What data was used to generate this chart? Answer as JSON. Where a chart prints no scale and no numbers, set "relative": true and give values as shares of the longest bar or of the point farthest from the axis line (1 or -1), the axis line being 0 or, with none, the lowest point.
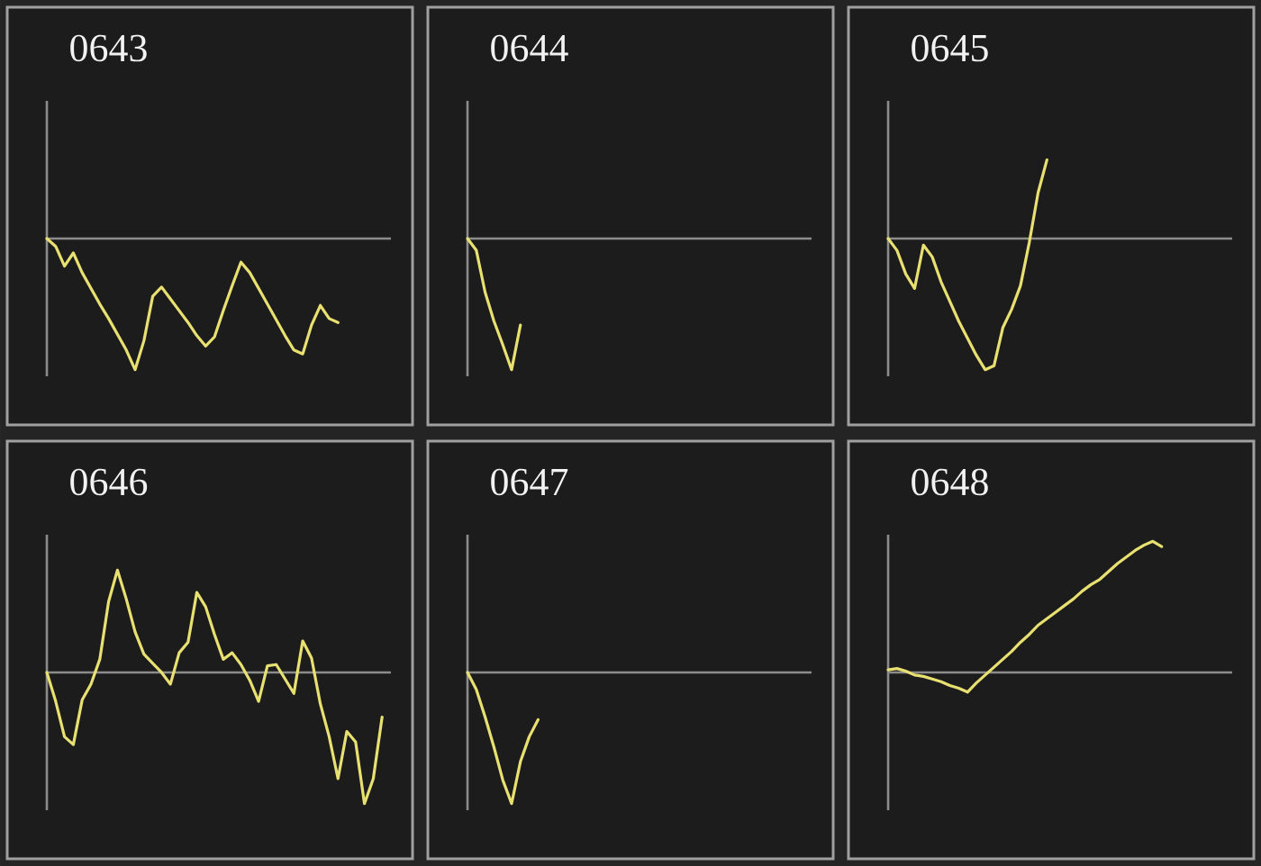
{
  "chart_data": [
    {
      "type": "line",
      "title": "0643",
      "relative": true,
      "color": "#e8e070",
      "categories": [
        null,
        null,
        null,
        null,
        null,
        null,
        null,
        null,
        null,
        null,
        null,
        null,
        null,
        null,
        null,
        null,
        null,
        null,
        null,
        null,
        null,
        null,
        null,
        null,
        null,
        null,
        null,
        null,
        null,
        null,
        null,
        null,
        null,
        null,
        null,
        null,
        null,
        null,
        null,
        null
      ],
      "values": [
        0,
        -0.06,
        -0.21,
        -0.11,
        -0.26,
        -0.38,
        -0.5,
        -0.61,
        -0.73,
        -0.85,
        -1,
        -0.78,
        -0.44,
        -0.37,
        -0.46,
        -0.55,
        -0.64,
        -0.74,
        -0.82,
        -0.75,
        -0.55,
        -0.36,
        -0.18,
        -0.26,
        -0.38,
        -0.5,
        -0.62,
        -0.74,
        -0.85,
        -0.88,
        -0.66,
        -0.51,
        -0.61,
        -0.64,
        null,
        null,
        null,
        null,
        null,
        null
      ]
    },
    {
      "type": "line",
      "title": "0644",
      "relative": true,
      "color": "#e8e070",
      "categories": [
        null,
        null,
        null,
        null,
        null,
        null,
        null,
        null,
        null,
        null,
        null,
        null,
        null,
        null,
        null,
        null,
        null,
        null,
        null,
        null,
        null,
        null,
        null,
        null,
        null,
        null,
        null,
        null,
        null,
        null,
        null,
        null,
        null,
        null,
        null,
        null,
        null,
        null,
        null,
        null
      ],
      "values": [
        0,
        -0.09,
        -0.41,
        -0.63,
        -0.81,
        -1,
        -0.66,
        null,
        null,
        null,
        null,
        null,
        null,
        null,
        null,
        null,
        null,
        null,
        null,
        null,
        null,
        null,
        null,
        null,
        null,
        null,
        null,
        null,
        null,
        null,
        null,
        null,
        null,
        null,
        null,
        null,
        null,
        null,
        null,
        null
      ]
    },
    {
      "type": "line",
      "title": "0645",
      "relative": true,
      "color": "#e8e070",
      "categories": [
        null,
        null,
        null,
        null,
        null,
        null,
        null,
        null,
        null,
        null,
        null,
        null,
        null,
        null,
        null,
        null,
        null,
        null,
        null,
        null,
        null,
        null,
        null,
        null,
        null,
        null,
        null,
        null,
        null,
        null,
        null,
        null,
        null,
        null,
        null,
        null,
        null,
        null,
        null,
        null
      ],
      "values": [
        0,
        -0.09,
        -0.27,
        -0.38,
        -0.05,
        -0.14,
        -0.33,
        -0.48,
        -0.63,
        -0.76,
        -0.89,
        -1,
        -0.97,
        -0.68,
        -0.54,
        -0.36,
        -0.03,
        0.35,
        0.6,
        null,
        null,
        null,
        null,
        null,
        null,
        null,
        null,
        null,
        null,
        null,
        null,
        null,
        null,
        null,
        null,
        null,
        null,
        null,
        null,
        null
      ]
    },
    {
      "type": "line",
      "title": "0646",
      "relative": true,
      "color": "#e8e070",
      "categories": [
        null,
        null,
        null,
        null,
        null,
        null,
        null,
        null,
        null,
        null,
        null,
        null,
        null,
        null,
        null,
        null,
        null,
        null,
        null,
        null,
        null,
        null,
        null,
        null,
        null,
        null,
        null,
        null,
        null,
        null,
        null,
        null,
        null,
        null,
        null,
        null,
        null,
        null,
        null,
        null
      ],
      "values": [
        0,
        -0.22,
        -0.49,
        -0.55,
        -0.21,
        -0.09,
        0.1,
        0.54,
        0.78,
        0.56,
        0.31,
        0.14,
        0.07,
        0,
        -0.09,
        0.15,
        0.23,
        0.61,
        0.5,
        0.29,
        0.1,
        0.15,
        0.06,
        -0.06,
        -0.22,
        0.05,
        0.06,
        -0.05,
        -0.16,
        0.24,
        0.11,
        -0.24,
        -0.49,
        -0.81,
        -0.45,
        -0.53,
        -1,
        -0.81,
        -0.34,
        null
      ]
    },
    {
      "type": "line",
      "title": "0647",
      "relative": true,
      "color": "#e8e070",
      "categories": [
        null,
        null,
        null,
        null,
        null,
        null,
        null,
        null,
        null,
        null,
        null,
        null,
        null,
        null,
        null,
        null,
        null,
        null,
        null,
        null,
        null,
        null,
        null,
        null,
        null,
        null,
        null,
        null,
        null,
        null,
        null,
        null,
        null,
        null,
        null,
        null,
        null,
        null,
        null,
        null
      ],
      "values": [
        0,
        -0.13,
        -0.34,
        -0.57,
        -0.82,
        -1,
        -0.68,
        -0.49,
        -0.36,
        null,
        null,
        null,
        null,
        null,
        null,
        null,
        null,
        null,
        null,
        null,
        null,
        null,
        null,
        null,
        null,
        null,
        null,
        null,
        null,
        null,
        null,
        null,
        null,
        null,
        null,
        null,
        null,
        null,
        null,
        null
      ]
    },
    {
      "type": "line",
      "title": "0648",
      "relative": true,
      "color": "#e8e070",
      "categories": [
        null,
        null,
        null,
        null,
        null,
        null,
        null,
        null,
        null,
        null,
        null,
        null,
        null,
        null,
        null,
        null,
        null,
        null,
        null,
        null,
        null,
        null,
        null,
        null,
        null,
        null,
        null,
        null,
        null,
        null,
        null,
        null,
        null,
        null,
        null,
        null,
        null,
        null,
        null,
        null
      ],
      "values": [
        0.02,
        0.03,
        0.01,
        -0.02,
        -0.03,
        -0.05,
        -0.07,
        -0.1,
        -0.12,
        -0.15,
        -0.08,
        -0.02,
        0.04,
        0.1,
        0.16,
        0.23,
        0.29,
        0.36,
        0.41,
        0.46,
        0.51,
        0.56,
        0.62,
        0.67,
        0.71,
        0.77,
        0.83,
        0.88,
        0.93,
        0.97,
        1,
        0.96,
        null,
        null,
        null,
        null,
        null,
        null,
        null,
        null
      ]
    }
  ]
}
